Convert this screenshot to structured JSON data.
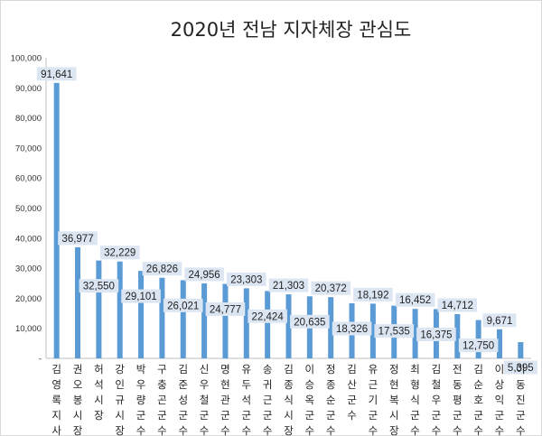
{
  "chart_data": {
    "type": "bar",
    "title": "2020년 전남 지자체장 관심도",
    "xlabel": "",
    "ylabel": "",
    "ylim": [
      0,
      100000
    ],
    "yticks": [
      "-",
      "10,000",
      "20,000",
      "30,000",
      "40,000",
      "50,000",
      "60,000",
      "70,000",
      "80,000",
      "90,000",
      "100,000"
    ],
    "grid": false,
    "legend": "none",
    "bar_color": "#5b9bd5",
    "label_bg": "#dce6f2",
    "categories": [
      [
        "김영록",
        "지사"
      ],
      [
        "권오봉",
        "시장"
      ],
      [
        "허석",
        "시장"
      ],
      [
        "강인규",
        "시장"
      ],
      [
        "박우량",
        "군수"
      ],
      [
        "구충곤",
        "군수"
      ],
      [
        "김준성",
        "군수"
      ],
      [
        "신우철",
        "군수"
      ],
      [
        "명현관",
        "군수"
      ],
      [
        "유두석",
        "군수"
      ],
      [
        "송귀근",
        "군수"
      ],
      [
        "김종식",
        "시장"
      ],
      [
        "이승옥",
        "군수"
      ],
      [
        "정종순",
        "군수"
      ],
      [
        "김산",
        "군수"
      ],
      [
        "유근기",
        "군수"
      ],
      [
        "정현복",
        "시장"
      ],
      [
        "최형식",
        "군수"
      ],
      [
        "김철우",
        "군수"
      ],
      [
        "전동평",
        "군수"
      ],
      [
        "김순호",
        "군수"
      ],
      [
        "이상익",
        "군수"
      ],
      [
        "이동진",
        "군수"
      ]
    ],
    "values": [
      91641,
      36977,
      32550,
      32229,
      29101,
      26826,
      26021,
      24956,
      24777,
      23303,
      22424,
      21303,
      20635,
      20372,
      18326,
      18192,
      17535,
      16452,
      16375,
      14712,
      12750,
      9671,
      5395
    ],
    "value_labels": [
      "91,641",
      "36,977",
      "32,550",
      "32,229",
      "29,101",
      "26,826",
      "26,021",
      "24,956",
      "24,777",
      "23,303",
      "22,424",
      "21,303",
      "20,635",
      "20,372",
      "18,326",
      "18,192",
      "17,535",
      "16,452",
      "16,375",
      "14,712",
      "12,750",
      "9,671",
      "5,395"
    ]
  }
}
